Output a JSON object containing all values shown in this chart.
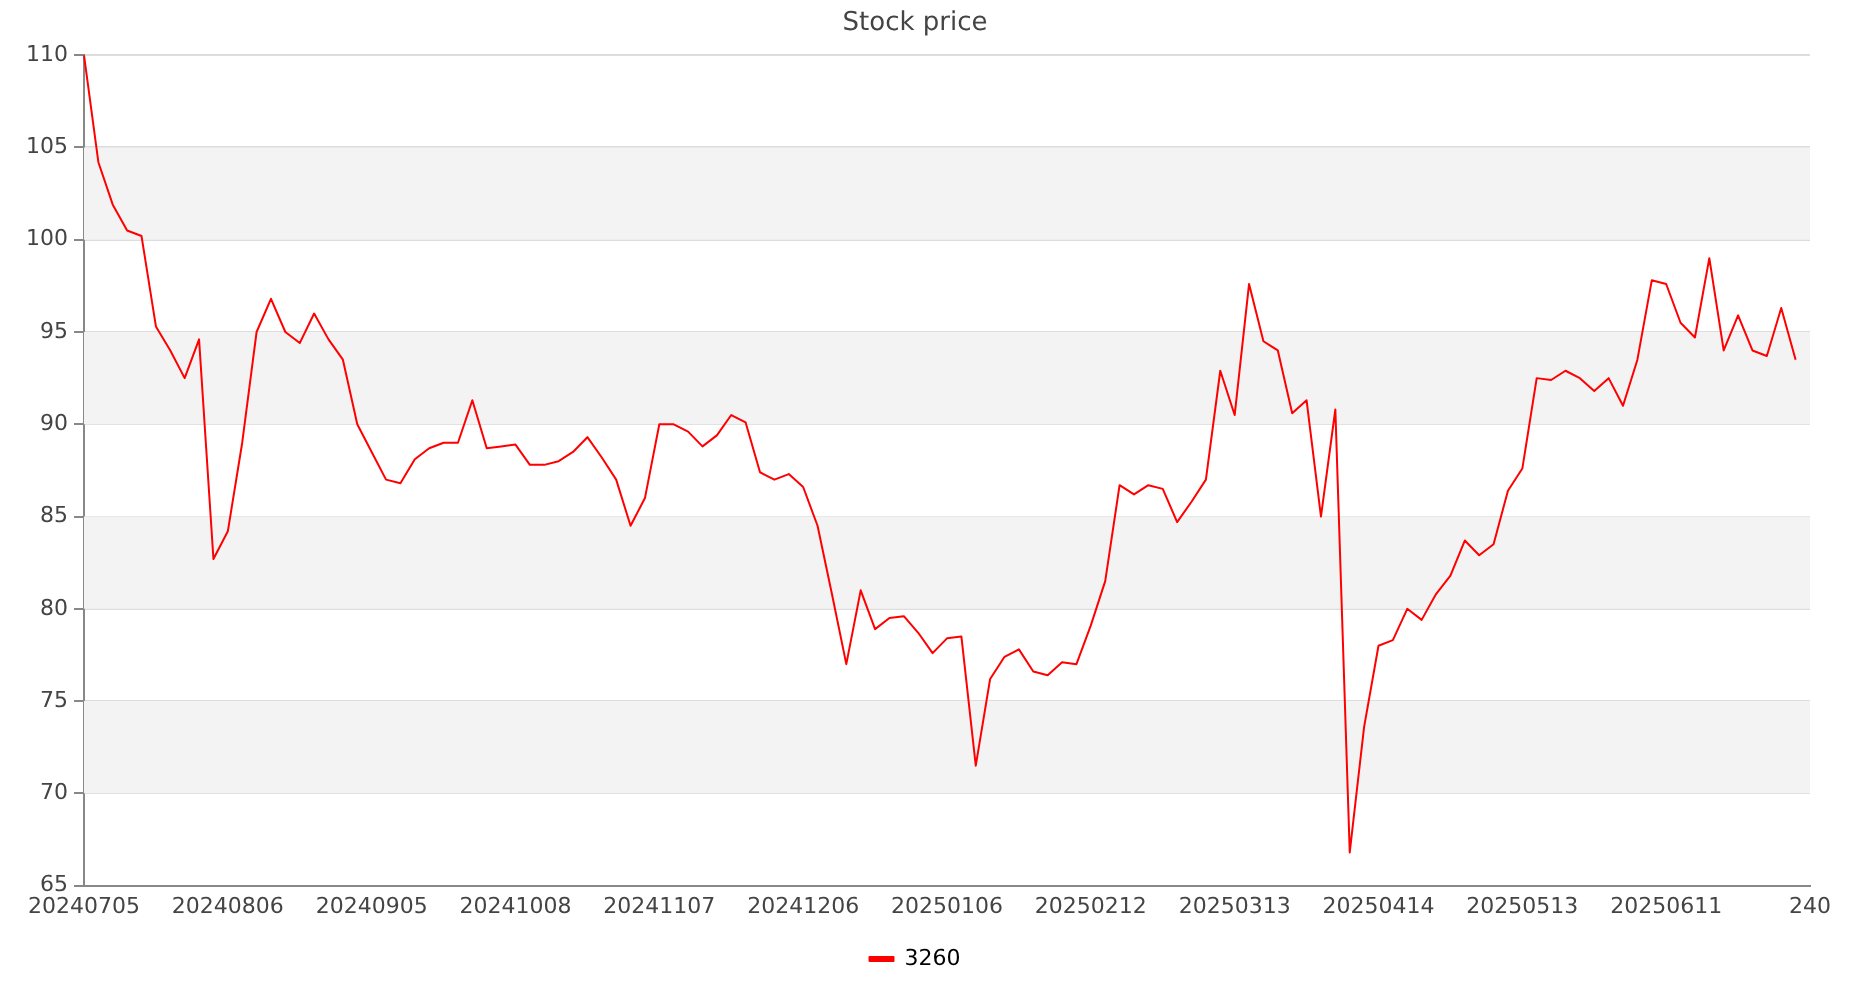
{
  "chart_data": {
    "type": "line",
    "title": "Stock price",
    "categories": [
      "20240705",
      null,
      null,
      null,
      null,
      null,
      null,
      null,
      null,
      null,
      "20240806",
      null,
      null,
      null,
      null,
      null,
      null,
      null,
      null,
      null,
      "20240905",
      null,
      null,
      null,
      null,
      null,
      null,
      null,
      null,
      null,
      "20241008",
      null,
      null,
      null,
      null,
      null,
      null,
      null,
      null,
      null,
      "20241107",
      null,
      null,
      null,
      null,
      null,
      null,
      null,
      null,
      null,
      "20241206",
      null,
      null,
      null,
      null,
      null,
      null,
      null,
      null,
      null,
      "20250106",
      null,
      null,
      null,
      null,
      null,
      null,
      null,
      null,
      null,
      "20250212",
      null,
      null,
      null,
      null,
      null,
      null,
      null,
      null,
      null,
      "20250313",
      null,
      null,
      null,
      null,
      null,
      null,
      null,
      null,
      null,
      "20250414",
      null,
      null,
      null,
      null,
      null,
      null,
      null,
      null,
      null,
      "20250513",
      null,
      null,
      null,
      null,
      null,
      null,
      null,
      null,
      null,
      "20250611",
      null,
      null,
      null,
      null,
      null,
      null,
      null,
      null,
      null,
      "240"
    ],
    "series": [
      {
        "name": "3260",
        "color": "#ff0000",
        "values": [
          110,
          104.2,
          101.9,
          100.5,
          100.2,
          95.3,
          94.0,
          92.5,
          94.6,
          82.7,
          84.2,
          89.0,
          95.0,
          96.8,
          95.0,
          94.4,
          96.0,
          94.6,
          93.5,
          90.0,
          88.5,
          87.0,
          86.8,
          88.1,
          88.7,
          89.0,
          89.0,
          91.3,
          88.7,
          88.8,
          88.9,
          87.8,
          87.8,
          88.0,
          88.5,
          89.3,
          88.2,
          87.0,
          84.5,
          86.0,
          90.0,
          90.0,
          89.6,
          88.8,
          89.4,
          90.5,
          90.1,
          87.4,
          87.0,
          87.3,
          86.6,
          84.5,
          80.8,
          77.0,
          81.0,
          78.9,
          79.5,
          79.6,
          78.7,
          77.6,
          78.4,
          78.5,
          71.5,
          76.2,
          77.4,
          77.8,
          76.6,
          76.4,
          77.1,
          77.0,
          79.1,
          81.5,
          86.7,
          86.2,
          86.7,
          86.5,
          84.7,
          85.8,
          87.0,
          92.9,
          90.5,
          97.6,
          94.5,
          94.0,
          90.6,
          91.3,
          85.0,
          90.8,
          66.8,
          73.6,
          78.0,
          78.3,
          80.0,
          79.4,
          80.8,
          81.8,
          83.7,
          82.9,
          83.5,
          86.4,
          87.6,
          92.5,
          92.4,
          92.9,
          92.5,
          91.8,
          92.5,
          91.0,
          93.5,
          97.8,
          97.6,
          95.5,
          94.7,
          99.0,
          94.0,
          95.9,
          94.0,
          93.7,
          96.3,
          93.5,
          null
        ]
      }
    ],
    "ylim": [
      65,
      110
    ],
    "yticks": [
      65,
      70,
      75,
      80,
      85,
      90,
      95,
      100,
      105,
      110
    ],
    "grid": "y",
    "legend": "bottom",
    "marker": "none",
    "line_style": "solid"
  }
}
